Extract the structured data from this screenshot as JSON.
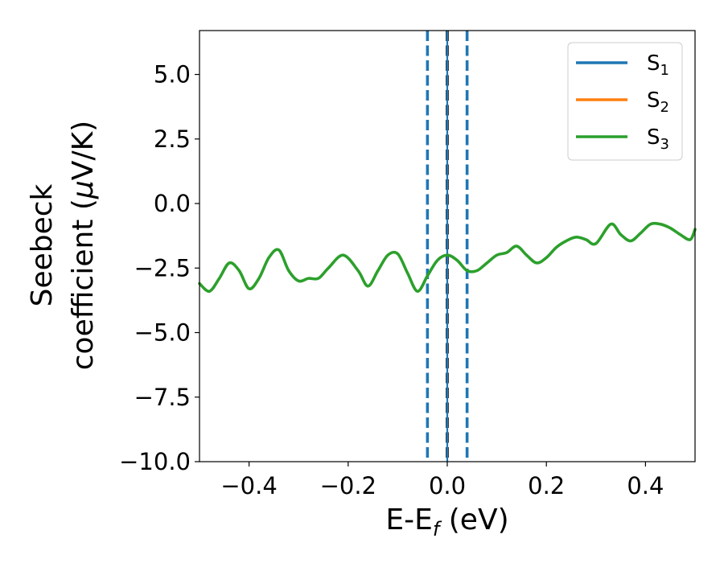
{
  "chart_data": {
    "type": "line",
    "xlabel_main": "E-E",
    "xlabel_sub": "f",
    "xlabel_unit": " (eV)",
    "ylabel_line1": "Seebeck",
    "ylabel_line2_prefix": "coefficient  (",
    "ylabel_mu": "μ",
    "ylabel_line2_suffix": "V/K)",
    "xlim": [
      -0.5,
      0.5
    ],
    "ylim": [
      -10.0,
      6.7
    ],
    "x_ticks": [
      -0.4,
      -0.2,
      0.0,
      0.2,
      0.4
    ],
    "x_tick_labels": [
      "−0.4",
      "−0.2",
      "0.0",
      "0.2",
      "0.4"
    ],
    "y_ticks": [
      -10.0,
      -7.5,
      -5.0,
      -2.5,
      0.0,
      2.5,
      5.0
    ],
    "y_tick_labels": [
      "−10.0",
      "−7.5",
      "−5.0",
      "−2.5",
      "0.0",
      "2.5",
      "5.0"
    ],
    "grid": false,
    "legend_position": "top-right",
    "series": [
      {
        "name": "S",
        "sub": "1",
        "color": "#1f77b4",
        "values": []
      },
      {
        "name": "S",
        "sub": "2",
        "color": "#ff7f0e",
        "values": []
      },
      {
        "name": "S",
        "sub": "3",
        "color": "#2ca02c",
        "x": [
          -0.5,
          -0.48,
          -0.46,
          -0.44,
          -0.42,
          -0.4,
          -0.38,
          -0.36,
          -0.34,
          -0.32,
          -0.3,
          -0.28,
          -0.26,
          -0.24,
          -0.21,
          -0.18,
          -0.16,
          -0.14,
          -0.12,
          -0.1,
          -0.08,
          -0.06,
          -0.04,
          -0.02,
          0.0,
          0.02,
          0.04,
          0.06,
          0.08,
          0.1,
          0.12,
          0.14,
          0.16,
          0.18,
          0.2,
          0.22,
          0.24,
          0.26,
          0.28,
          0.3,
          0.33,
          0.35,
          0.37,
          0.39,
          0.41,
          0.43,
          0.45,
          0.47,
          0.49,
          0.5
        ],
        "values": [
          -3.1,
          -3.4,
          -2.9,
          -2.3,
          -2.6,
          -3.3,
          -2.9,
          -2.1,
          -1.8,
          -2.6,
          -3.0,
          -2.9,
          -2.9,
          -2.5,
          -2.0,
          -2.6,
          -3.2,
          -2.6,
          -2.0,
          -1.95,
          -2.7,
          -3.4,
          -2.8,
          -2.2,
          -2.0,
          -2.2,
          -2.6,
          -2.6,
          -2.3,
          -2.0,
          -1.9,
          -1.65,
          -2.0,
          -2.3,
          -2.1,
          -1.7,
          -1.45,
          -1.3,
          -1.4,
          -1.55,
          -0.8,
          -1.2,
          -1.45,
          -1.15,
          -0.8,
          -0.8,
          -0.95,
          -1.2,
          -1.4,
          -1.0
        ]
      }
    ],
    "vlines": [
      {
        "x": -0.04,
        "color": "#1f77b4",
        "style": "dashed"
      },
      {
        "x": 0.04,
        "color": "#1f77b4",
        "style": "dashed"
      },
      {
        "x": 0.0,
        "color": "#000000",
        "style": "dashed"
      },
      {
        "x": 0.0,
        "color": "#1f77b4",
        "style": "solid"
      }
    ]
  }
}
